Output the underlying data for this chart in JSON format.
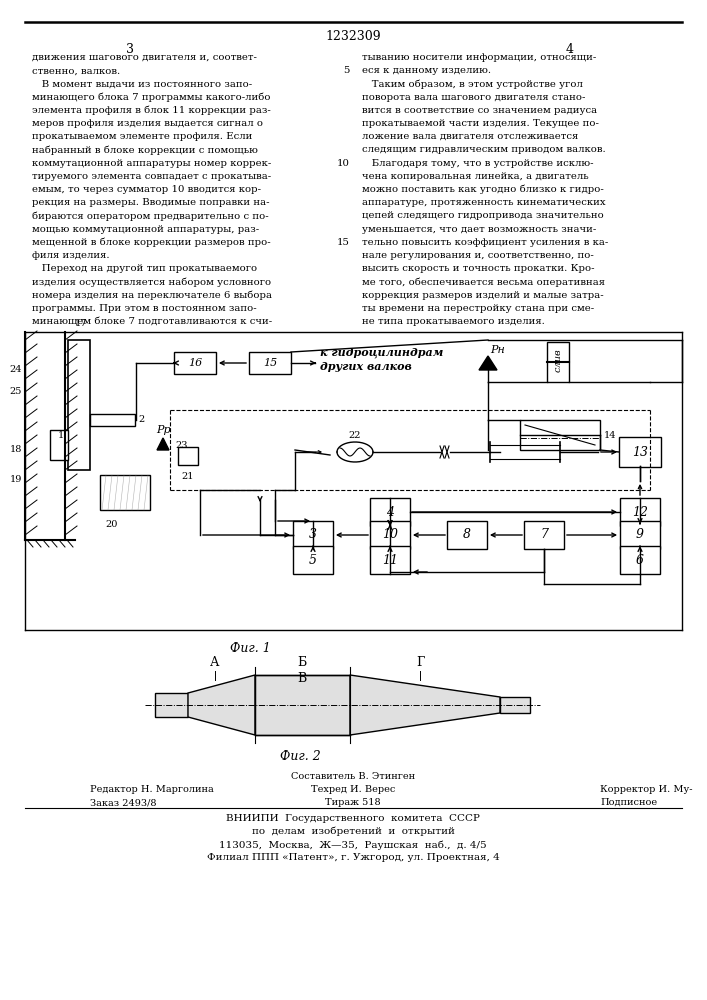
{
  "page_number": "1232309",
  "col_left_number": "3",
  "col_right_number": "4",
  "background_color": "#ffffff",
  "text_color": "#000000",
  "col_left_text": [
    "движения шагового двигателя и, соответ-",
    "ственно, валков.",
    "   В момент выдачи из постоянного запо-",
    "минающего блока 7 программы какого-либо",
    "элемента профиля в блок 11 коррекции раз-",
    "меров профиля изделия выдается сигнал о",
    "прокатываемом элементе профиля. Если",
    "набранный в блоке коррекции с помощью",
    "коммутационной аппаратуры номер коррек-",
    "тируемого элемента совпадает с прокатыва-",
    "емым, то через сумматор 10 вводится кор-",
    "рекция на размеры. Вводимые поправки на-",
    "бираются оператором предварительно с по-",
    "мощью коммутационной аппаратуры, раз-",
    "мещенной в блоке коррекции размеров про-",
    "филя изделия.",
    "   Переход на другой тип прокатываемого",
    "изделия осуществляется набором условного",
    "номера изделия на переключателе 6 выбора",
    "программы. При этом в постоянном запо-",
    "минающем блоке 7 подготавливаются к счи-"
  ],
  "col_right_text": [
    "тыванию носители информации, относящи-",
    "еся к данному изделию.",
    "   Таким образом, в этом устройстве угол",
    "поворота вала шагового двигателя стано-",
    "вится в соответствие со значением радиуса",
    "прокатываемой части изделия. Текущее по-",
    "ложение вала двигателя отслеживается",
    "следящим гидравлическим приводом валков.",
    "   Благодаря тому, что в устройстве исклю-",
    "чена копировальная линейка, а двигатель",
    "можно поставить как угодно близко к гидро-",
    "аппаратуре, протяженность кинематических",
    "цепей следящего гидропривода значительно",
    "уменьшается, что дает возможность значи-",
    "тельно повысить коэффициент усиления в ка-",
    "нале регулирования и, соответственно, по-",
    "высить скорость и точность прокатки. Кро-",
    "ме того, обеспечивается весьма оперативная",
    "коррекция размеров изделий и малые затра-",
    "ты времени на перестройку стана при сме-",
    "не типа прокатываемого изделия."
  ],
  "right_line_nums": [
    [
      1,
      "5"
    ],
    [
      8,
      "10"
    ],
    [
      14,
      "15"
    ]
  ],
  "fig1_caption": "Фиг. 1",
  "fig2_caption": "Фиг. 2",
  "footer_composer": "Составитель В. Этинген",
  "footer_row1_left": "Редактор Н. Марголина",
  "footer_row1_mid": "Техред И. Верес",
  "footer_row1_right": "Корректор И. Му-",
  "footer_row2_left": "Заказ 2493/8",
  "footer_row2_mid": "Тираж 518",
  "footer_row2_right": "Подписное",
  "footer_org1": "ВНИИПИ  Государственного  комитета  СССР",
  "footer_org2": "по  делам  изобретений  и  открытий",
  "footer_addr1": "113035,  Москва,  Ж—35,  Раушская  наб.,  д. 4/5",
  "footer_addr2": "Филиал ППП «Патент», г. Ужгород, ул. Проектная, 4"
}
